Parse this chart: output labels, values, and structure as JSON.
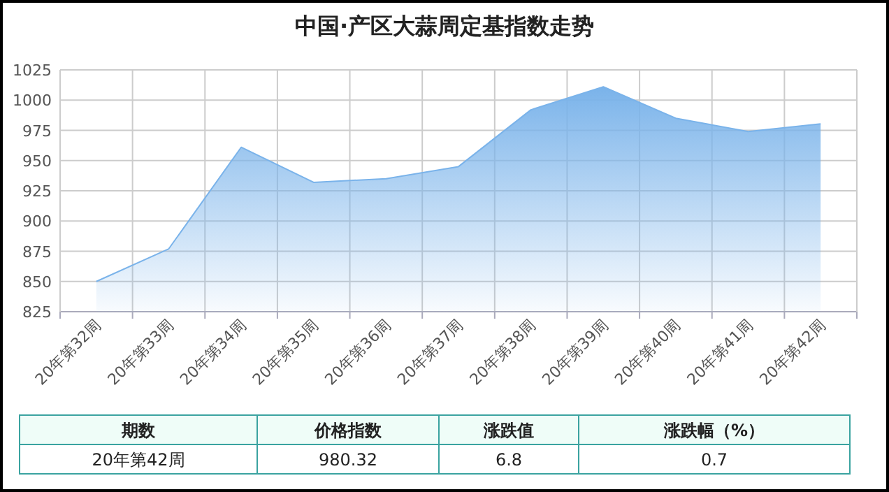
{
  "chart_data": {
    "type": "area",
    "title": "中国·产区大蒜周定基指数走势",
    "categories": [
      "20年第32周",
      "20年第33周",
      "20年第34周",
      "20年第35周",
      "20年第36周",
      "20年第37周",
      "20年第38周",
      "20年第39周",
      "20年第40周",
      "20年第41周",
      "20年第42周"
    ],
    "values": [
      850,
      877,
      961,
      932,
      935,
      945,
      992,
      1011,
      985,
      974,
      980.32
    ],
    "color": "#7ab3ea",
    "ylim": [
      825,
      1025
    ],
    "yticks": [
      825,
      850,
      875,
      900,
      925,
      950,
      975,
      1000,
      1025
    ],
    "grid": true,
    "annotations": [
      "期数",
      "价格指数",
      "涨跌值",
      "涨跌幅（%）",
      "20年第42周",
      "980.32",
      "6.8",
      "0.7"
    ]
  }
}
